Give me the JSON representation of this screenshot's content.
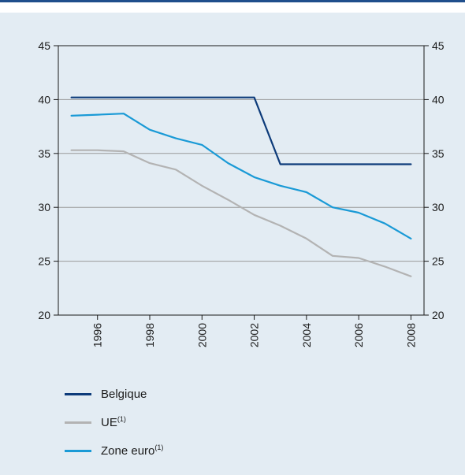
{
  "chart_data": {
    "type": "line",
    "title": "",
    "xlabel": "",
    "ylabel": "",
    "x": [
      1995,
      1996,
      1997,
      1998,
      1999,
      2000,
      2001,
      2002,
      2003,
      2004,
      2005,
      2006,
      2007,
      2008
    ],
    "x_tick_labels": [
      "1996",
      "1998",
      "2000",
      "2002",
      "2004",
      "2006",
      "2008"
    ],
    "x_tick_values": [
      1996,
      1998,
      2000,
      2002,
      2004,
      2006,
      2008
    ],
    "ylim": [
      20,
      45
    ],
    "y_ticks": [
      20,
      25,
      30,
      35,
      40,
      45
    ],
    "y_tick_labels": [
      "20",
      "25",
      "30",
      "35",
      "40",
      "45"
    ],
    "grid": "horizontal",
    "legend_position": "bottom",
    "series": [
      {
        "name": "Belgique",
        "footnote": "",
        "color": "#0d3b7a",
        "values": [
          40.2,
          40.2,
          40.2,
          40.2,
          40.2,
          40.2,
          40.2,
          40.2,
          34.0,
          34.0,
          34.0,
          34.0,
          34.0,
          34.0
        ]
      },
      {
        "name": "UE",
        "footnote": "(1)",
        "color": "#b3b3b3",
        "values": [
          35.3,
          35.3,
          35.2,
          34.1,
          33.5,
          32.0,
          30.7,
          29.3,
          28.3,
          27.1,
          25.5,
          25.3,
          24.5,
          23.6
        ]
      },
      {
        "name": "Zone euro",
        "footnote": "(1)",
        "color": "#1a9ad6",
        "values": [
          38.5,
          38.6,
          38.7,
          37.2,
          36.4,
          35.8,
          34.1,
          32.8,
          32.0,
          31.4,
          30.0,
          29.5,
          28.5,
          27.1
        ]
      }
    ]
  }
}
